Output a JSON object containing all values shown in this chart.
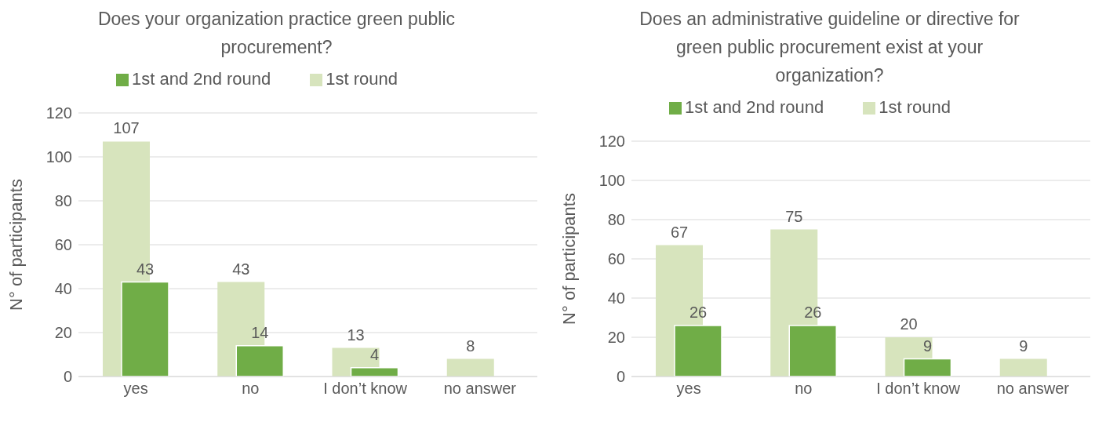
{
  "chart_data": [
    {
      "type": "bar",
      "title": "Does your organization practice green public procurement?",
      "ylabel": "N° of participants",
      "categories": [
        "yes",
        "no",
        "I don’t know",
        "no answer"
      ],
      "series": [
        {
          "name": "1st round",
          "color": "#d7e4bd",
          "values": [
            107,
            43,
            13,
            8
          ]
        },
        {
          "name": "1st and 2nd round",
          "color": "#70ad47",
          "values": [
            43,
            14,
            4,
            null
          ]
        }
      ],
      "ylim": [
        0,
        120
      ],
      "yticks": [
        0,
        20,
        40,
        60,
        80,
        100,
        120
      ],
      "grid": "y",
      "legend": "top",
      "data_labels": true
    },
    {
      "type": "bar",
      "title": "Does an administrative guideline or directive for green public procurement exist at your organization?",
      "ylabel": "N° of participants",
      "categories": [
        "yes",
        "no",
        "I don’t know",
        "no answer"
      ],
      "series": [
        {
          "name": "1st round",
          "color": "#d7e4bd",
          "values": [
            67,
            75,
            20,
            9
          ]
        },
        {
          "name": "1st and 2nd round",
          "color": "#70ad47",
          "values": [
            26,
            26,
            9,
            null
          ]
        }
      ],
      "ylim": [
        0,
        120
      ],
      "yticks": [
        0,
        20,
        40,
        60,
        80,
        100,
        120
      ],
      "grid": "y",
      "legend": "top",
      "data_labels": true
    }
  ]
}
